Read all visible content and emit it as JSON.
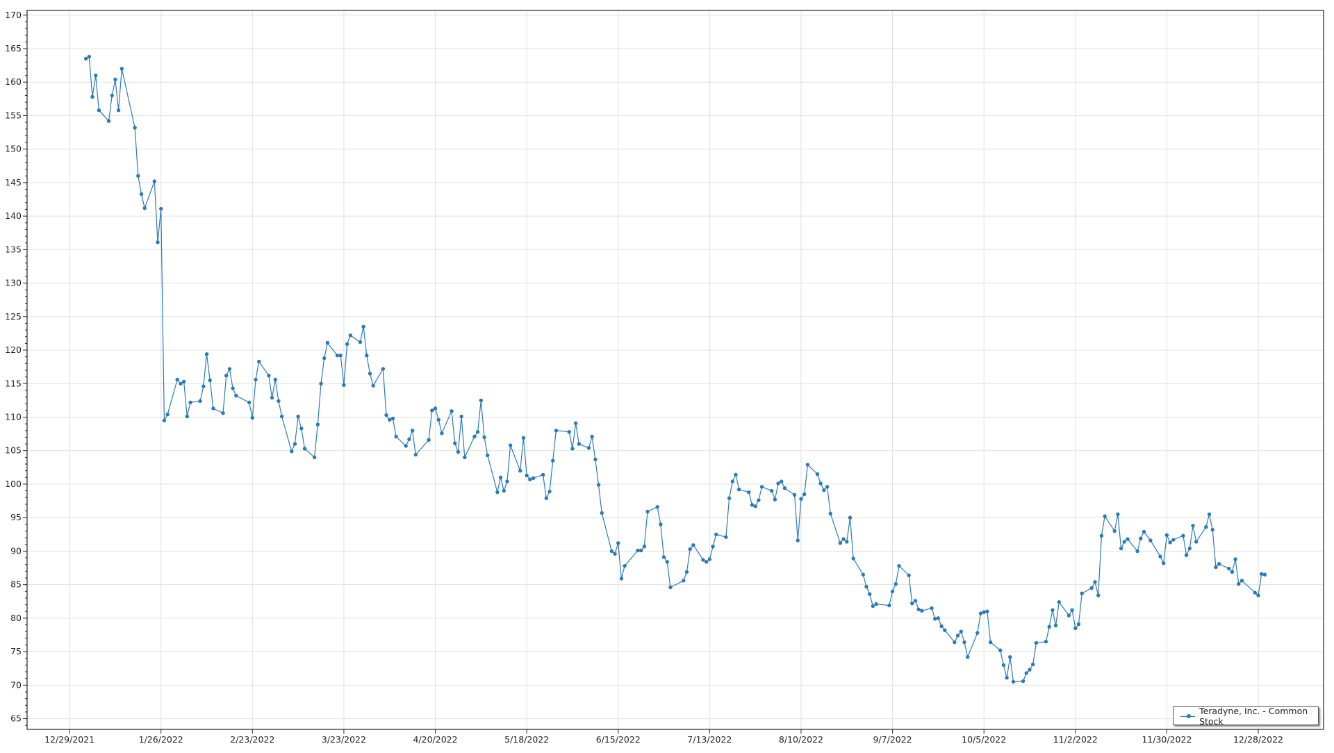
{
  "chart_data": {
    "type": "line",
    "title": "",
    "xlabel": "",
    "ylabel": "",
    "xlim": [
      "12/16/2021",
      "1/17/2023"
    ],
    "ylim": [
      63.4,
      170.7
    ],
    "grid": true,
    "legend_position": "bottom-right",
    "color": "#2a7ab8",
    "x_ticks": [
      "12/29/2021",
      "1/26/2022",
      "2/23/2022",
      "3/23/2022",
      "4/20/2022",
      "5/18/2022",
      "6/15/2022",
      "7/13/2022",
      "8/10/2022",
      "9/7/2022",
      "10/5/2022",
      "11/2/2022",
      "11/30/2022",
      "12/28/2022"
    ],
    "y_ticks": [
      65,
      70,
      75,
      80,
      85,
      90,
      95,
      100,
      105,
      110,
      115,
      120,
      125,
      130,
      135,
      140,
      145,
      150,
      155,
      160,
      165,
      170
    ],
    "series": [
      {
        "name": "Teradyne, Inc. - Common Stock",
        "points": [
          [
            "1/3/2022",
            163.5
          ],
          [
            "1/4/2022",
            163.8
          ],
          [
            "1/5/2022",
            157.8
          ],
          [
            "1/6/2022",
            161.0
          ],
          [
            "1/7/2022",
            155.8
          ],
          [
            "1/10/2022",
            154.2
          ],
          [
            "1/11/2022",
            158.0
          ],
          [
            "1/12/2022",
            160.4
          ],
          [
            "1/13/2022",
            155.8
          ],
          [
            "1/14/2022",
            162.0
          ],
          [
            "1/18/2022",
            153.2
          ],
          [
            "1/19/2022",
            146.0
          ],
          [
            "1/20/2022",
            143.3
          ],
          [
            "1/21/2022",
            141.2
          ],
          [
            "1/24/2022",
            145.2
          ],
          [
            "1/25/2022",
            136.1
          ],
          [
            "1/26/2022",
            141.1
          ],
          [
            "1/27/2022",
            109.5
          ],
          [
            "1/28/2022",
            110.4
          ],
          [
            "1/31/2022",
            115.6
          ],
          [
            "2/1/2022",
            115.0
          ],
          [
            "2/2/2022",
            115.3
          ],
          [
            "2/3/2022",
            110.1
          ],
          [
            "2/4/2022",
            112.2
          ],
          [
            "2/7/2022",
            112.4
          ],
          [
            "2/8/2022",
            114.6
          ],
          [
            "2/9/2022",
            119.4
          ],
          [
            "2/10/2022",
            115.5
          ],
          [
            "2/11/2022",
            111.3
          ],
          [
            "2/14/2022",
            110.6
          ],
          [
            "2/15/2022",
            116.2
          ],
          [
            "2/16/2022",
            117.2
          ],
          [
            "2/17/2022",
            114.3
          ],
          [
            "2/18/2022",
            113.2
          ],
          [
            "2/22/2022",
            112.2
          ],
          [
            "2/23/2022",
            109.9
          ],
          [
            "2/24/2022",
            115.6
          ],
          [
            "2/25/2022",
            118.3
          ],
          [
            "2/28/2022",
            116.2
          ],
          [
            "3/1/2022",
            112.9
          ],
          [
            "3/2/2022",
            115.6
          ],
          [
            "3/3/2022",
            112.4
          ],
          [
            "3/4/2022",
            110.1
          ],
          [
            "3/7/2022",
            104.9
          ],
          [
            "3/8/2022",
            106.0
          ],
          [
            "3/9/2022",
            110.1
          ],
          [
            "3/10/2022",
            108.3
          ],
          [
            "3/11/2022",
            105.3
          ],
          [
            "3/14/2022",
            104.0
          ],
          [
            "3/15/2022",
            108.9
          ],
          [
            "3/16/2022",
            115.0
          ],
          [
            "3/17/2022",
            118.8
          ],
          [
            "3/18/2022",
            121.1
          ],
          [
            "3/21/2022",
            119.2
          ],
          [
            "3/22/2022",
            119.2
          ],
          [
            "3/23/2022",
            114.8
          ],
          [
            "3/24/2022",
            120.9
          ],
          [
            "3/25/2022",
            122.2
          ],
          [
            "3/28/2022",
            121.2
          ],
          [
            "3/29/2022",
            123.5
          ],
          [
            "3/30/2022",
            119.2
          ],
          [
            "3/31/2022",
            116.5
          ],
          [
            "4/1/2022",
            114.7
          ],
          [
            "4/4/2022",
            117.2
          ],
          [
            "4/5/2022",
            110.3
          ],
          [
            "4/6/2022",
            109.6
          ],
          [
            "4/7/2022",
            109.8
          ],
          [
            "4/8/2022",
            107.1
          ],
          [
            "4/11/2022",
            105.7
          ],
          [
            "4/12/2022",
            106.7
          ],
          [
            "4/13/2022",
            108.0
          ],
          [
            "4/14/2022",
            104.4
          ],
          [
            "4/18/2022",
            106.6
          ],
          [
            "4/19/2022",
            111.0
          ],
          [
            "4/20/2022",
            111.3
          ],
          [
            "4/21/2022",
            109.6
          ],
          [
            "4/22/2022",
            107.6
          ],
          [
            "4/25/2022",
            110.9
          ],
          [
            "4/26/2022",
            106.1
          ],
          [
            "4/27/2022",
            104.8
          ],
          [
            "4/28/2022",
            110.1
          ],
          [
            "4/29/2022",
            104.0
          ],
          [
            "5/2/2022",
            107.1
          ],
          [
            "5/3/2022",
            107.8
          ],
          [
            "5/4/2022",
            112.5
          ],
          [
            "5/5/2022",
            107.0
          ],
          [
            "5/6/2022",
            104.3
          ],
          [
            "5/9/2022",
            98.8
          ],
          [
            "5/10/2022",
            101.0
          ],
          [
            "5/11/2022",
            99.0
          ],
          [
            "5/12/2022",
            100.4
          ],
          [
            "5/13/2022",
            105.8
          ],
          [
            "5/16/2022",
            102.0
          ],
          [
            "5/17/2022",
            106.9
          ],
          [
            "5/18/2022",
            101.3
          ],
          [
            "5/19/2022",
            100.7
          ],
          [
            "5/20/2022",
            100.9
          ],
          [
            "5/23/2022",
            101.4
          ],
          [
            "5/24/2022",
            97.9
          ],
          [
            "5/25/2022",
            98.9
          ],
          [
            "5/26/2022",
            103.5
          ],
          [
            "5/27/2022",
            108.0
          ],
          [
            "5/31/2022",
            107.8
          ],
          [
            "6/1/2022",
            105.3
          ],
          [
            "6/2/2022",
            109.1
          ],
          [
            "6/3/2022",
            106.0
          ],
          [
            "6/6/2022",
            105.4
          ],
          [
            "6/7/2022",
            107.1
          ],
          [
            "6/8/2022",
            103.7
          ],
          [
            "6/9/2022",
            99.9
          ],
          [
            "6/10/2022",
            95.7
          ],
          [
            "6/13/2022",
            90.0
          ],
          [
            "6/14/2022",
            89.6
          ],
          [
            "6/15/2022",
            91.2
          ],
          [
            "6/16/2022",
            85.9
          ],
          [
            "6/17/2022",
            87.8
          ],
          [
            "6/21/2022",
            90.1
          ],
          [
            "6/22/2022",
            90.1
          ],
          [
            "6/23/2022",
            90.7
          ],
          [
            "6/24/2022",
            95.9
          ],
          [
            "6/27/2022",
            96.6
          ],
          [
            "6/28/2022",
            94.0
          ],
          [
            "6/29/2022",
            89.1
          ],
          [
            "6/30/2022",
            88.4
          ],
          [
            "7/1/2022",
            84.6
          ],
          [
            "7/5/2022",
            85.6
          ],
          [
            "7/6/2022",
            86.9
          ],
          [
            "7/7/2022",
            90.3
          ],
          [
            "7/8/2022",
            90.9
          ],
          [
            "7/11/2022",
            88.7
          ],
          [
            "7/12/2022",
            88.4
          ],
          [
            "7/13/2022",
            88.8
          ],
          [
            "7/14/2022",
            90.7
          ],
          [
            "7/15/2022",
            92.5
          ],
          [
            "7/18/2022",
            92.1
          ],
          [
            "7/19/2022",
            97.9
          ],
          [
            "7/20/2022",
            100.4
          ],
          [
            "7/21/2022",
            101.4
          ],
          [
            "7/22/2022",
            99.2
          ],
          [
            "7/25/2022",
            98.8
          ],
          [
            "7/26/2022",
            96.9
          ],
          [
            "7/27/2022",
            96.7
          ],
          [
            "7/28/2022",
            97.6
          ],
          [
            "7/29/2022",
            99.6
          ],
          [
            "8/1/2022",
            99.0
          ],
          [
            "8/2/2022",
            97.7
          ],
          [
            "8/3/2022",
            100.1
          ],
          [
            "8/4/2022",
            100.4
          ],
          [
            "8/5/2022",
            99.4
          ],
          [
            "8/8/2022",
            98.4
          ],
          [
            "8/9/2022",
            91.6
          ],
          [
            "8/10/2022",
            97.8
          ],
          [
            "8/11/2022",
            98.5
          ],
          [
            "8/12/2022",
            102.9
          ],
          [
            "8/15/2022",
            101.5
          ],
          [
            "8/16/2022",
            100.1
          ],
          [
            "8/17/2022",
            99.1
          ],
          [
            "8/18/2022",
            99.6
          ],
          [
            "8/19/2022",
            95.6
          ],
          [
            "8/22/2022",
            91.2
          ],
          [
            "8/23/2022",
            91.8
          ],
          [
            "8/24/2022",
            91.4
          ],
          [
            "8/25/2022",
            95.0
          ],
          [
            "8/26/2022",
            88.9
          ],
          [
            "8/29/2022",
            86.5
          ],
          [
            "8/30/2022",
            84.7
          ],
          [
            "8/31/2022",
            83.6
          ],
          [
            "9/1/2022",
            81.8
          ],
          [
            "9/2/2022",
            82.1
          ],
          [
            "9/6/2022",
            81.9
          ],
          [
            "9/7/2022",
            84.0
          ],
          [
            "9/8/2022",
            85.1
          ],
          [
            "9/9/2022",
            87.8
          ],
          [
            "9/12/2022",
            86.4
          ],
          [
            "9/13/2022",
            82.2
          ],
          [
            "9/14/2022",
            82.6
          ],
          [
            "9/15/2022",
            81.3
          ],
          [
            "9/16/2022",
            81.1
          ],
          [
            "9/19/2022",
            81.5
          ],
          [
            "9/20/2022",
            79.9
          ],
          [
            "9/21/2022",
            80.0
          ],
          [
            "9/22/2022",
            78.8
          ],
          [
            "9/23/2022",
            78.2
          ],
          [
            "9/26/2022",
            76.4
          ],
          [
            "9/27/2022",
            77.4
          ],
          [
            "9/28/2022",
            78.0
          ],
          [
            "9/29/2022",
            76.4
          ],
          [
            "9/30/2022",
            74.2
          ],
          [
            "10/3/2022",
            77.8
          ],
          [
            "10/4/2022",
            80.7
          ],
          [
            "10/5/2022",
            80.9
          ],
          [
            "10/6/2022",
            81.0
          ],
          [
            "10/7/2022",
            76.4
          ],
          [
            "10/10/2022",
            75.2
          ],
          [
            "10/11/2022",
            73.0
          ],
          [
            "10/12/2022",
            71.1
          ],
          [
            "10/13/2022",
            74.2
          ],
          [
            "10/14/2022",
            70.5
          ],
          [
            "10/17/2022",
            70.6
          ],
          [
            "10/18/2022",
            71.8
          ],
          [
            "10/19/2022",
            72.3
          ],
          [
            "10/20/2022",
            73.1
          ],
          [
            "10/21/2022",
            76.3
          ],
          [
            "10/24/2022",
            76.5
          ],
          [
            "10/25/2022",
            78.7
          ],
          [
            "10/26/2022",
            81.2
          ],
          [
            "10/27/2022",
            78.9
          ],
          [
            "10/28/2022",
            82.4
          ],
          [
            "10/31/2022",
            80.4
          ],
          [
            "11/1/2022",
            81.2
          ],
          [
            "11/2/2022",
            78.5
          ],
          [
            "11/3/2022",
            79.1
          ],
          [
            "11/4/2022",
            83.7
          ],
          [
            "11/7/2022",
            84.5
          ],
          [
            "11/8/2022",
            85.4
          ],
          [
            "11/9/2022",
            83.4
          ],
          [
            "11/10/2022",
            92.3
          ],
          [
            "11/11/2022",
            95.2
          ],
          [
            "11/14/2022",
            93.0
          ],
          [
            "11/15/2022",
            95.5
          ],
          [
            "11/16/2022",
            90.4
          ],
          [
            "11/17/2022",
            91.4
          ],
          [
            "11/18/2022",
            91.8
          ],
          [
            "11/21/2022",
            90.0
          ],
          [
            "11/22/2022",
            91.9
          ],
          [
            "11/23/2022",
            92.9
          ],
          [
            "11/25/2022",
            91.6
          ],
          [
            "11/28/2022",
            89.2
          ],
          [
            "11/29/2022",
            88.2
          ],
          [
            "11/30/2022",
            92.4
          ],
          [
            "12/1/2022",
            91.3
          ],
          [
            "12/2/2022",
            91.7
          ],
          [
            "12/5/2022",
            92.3
          ],
          [
            "12/6/2022",
            89.4
          ],
          [
            "12/7/2022",
            90.4
          ],
          [
            "12/8/2022",
            93.8
          ],
          [
            "12/9/2022",
            91.4
          ],
          [
            "12/12/2022",
            93.6
          ],
          [
            "12/13/2022",
            95.5
          ],
          [
            "12/14/2022",
            93.2
          ],
          [
            "12/15/2022",
            87.6
          ],
          [
            "12/16/2022",
            88.1
          ],
          [
            "12/19/2022",
            87.4
          ],
          [
            "12/20/2022",
            86.9
          ],
          [
            "12/21/2022",
            88.8
          ],
          [
            "12/22/2022",
            85.1
          ],
          [
            "12/23/2022",
            85.6
          ],
          [
            "12/27/2022",
            83.8
          ],
          [
            "12/28/2022",
            83.4
          ],
          [
            "12/29/2022",
            86.6
          ],
          [
            "12/30/2022",
            86.5
          ]
        ]
      }
    ]
  }
}
